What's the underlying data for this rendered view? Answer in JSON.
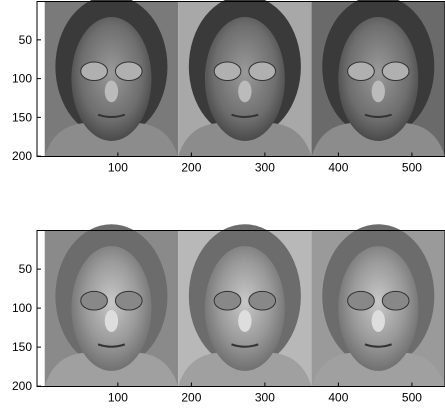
{
  "chart_data": [
    {
      "type": "image",
      "xlim": [
        -10,
        545
      ],
      "ylim": [
        0.5,
        200.5
      ],
      "xticks": [
        100,
        200,
        300,
        400,
        500
      ],
      "yticks": [
        50,
        100,
        150,
        200
      ]
    },
    {
      "type": "image",
      "xlim": [
        -10,
        545
      ],
      "ylim": [
        0.5,
        200.5
      ],
      "xticks": [
        100,
        200,
        300,
        400,
        500
      ],
      "yticks": [
        50,
        100,
        150,
        200
      ]
    }
  ]
}
